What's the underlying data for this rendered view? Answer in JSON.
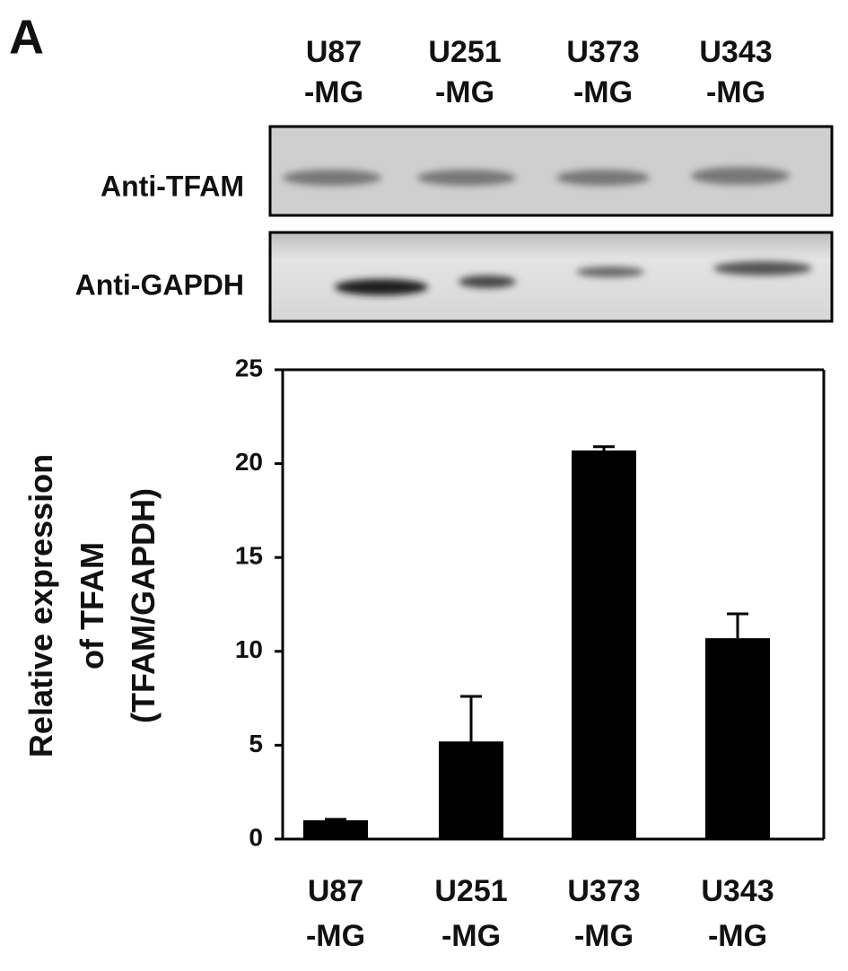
{
  "panel_label": "A",
  "blot": {
    "lanes": [
      [
        "U87",
        "-MG"
      ],
      [
        "U251",
        "-MG"
      ],
      [
        "U373",
        "-MG"
      ],
      [
        "U343",
        "-MG"
      ]
    ],
    "rows": [
      "Anti-TFAM",
      "Anti-GAPDH"
    ]
  },
  "chart_data": {
    "type": "bar",
    "y_label": [
      "Relative expression",
      "of  TFAM",
      "(TFAM/GAPDH)"
    ],
    "categories": [
      [
        "U87",
        "-MG"
      ],
      [
        "U251",
        "-MG"
      ],
      [
        "U373",
        "-MG"
      ],
      [
        "U343",
        "-MG"
      ]
    ],
    "values": [
      1.0,
      5.2,
      20.7,
      10.7
    ],
    "errors": [
      0.05,
      2.4,
      0.2,
      1.3
    ],
    "color": "#000000",
    "ylim": [
      0,
      25
    ],
    "yticks": [
      0,
      5,
      10,
      15,
      20,
      25
    ],
    "grid": false
  }
}
